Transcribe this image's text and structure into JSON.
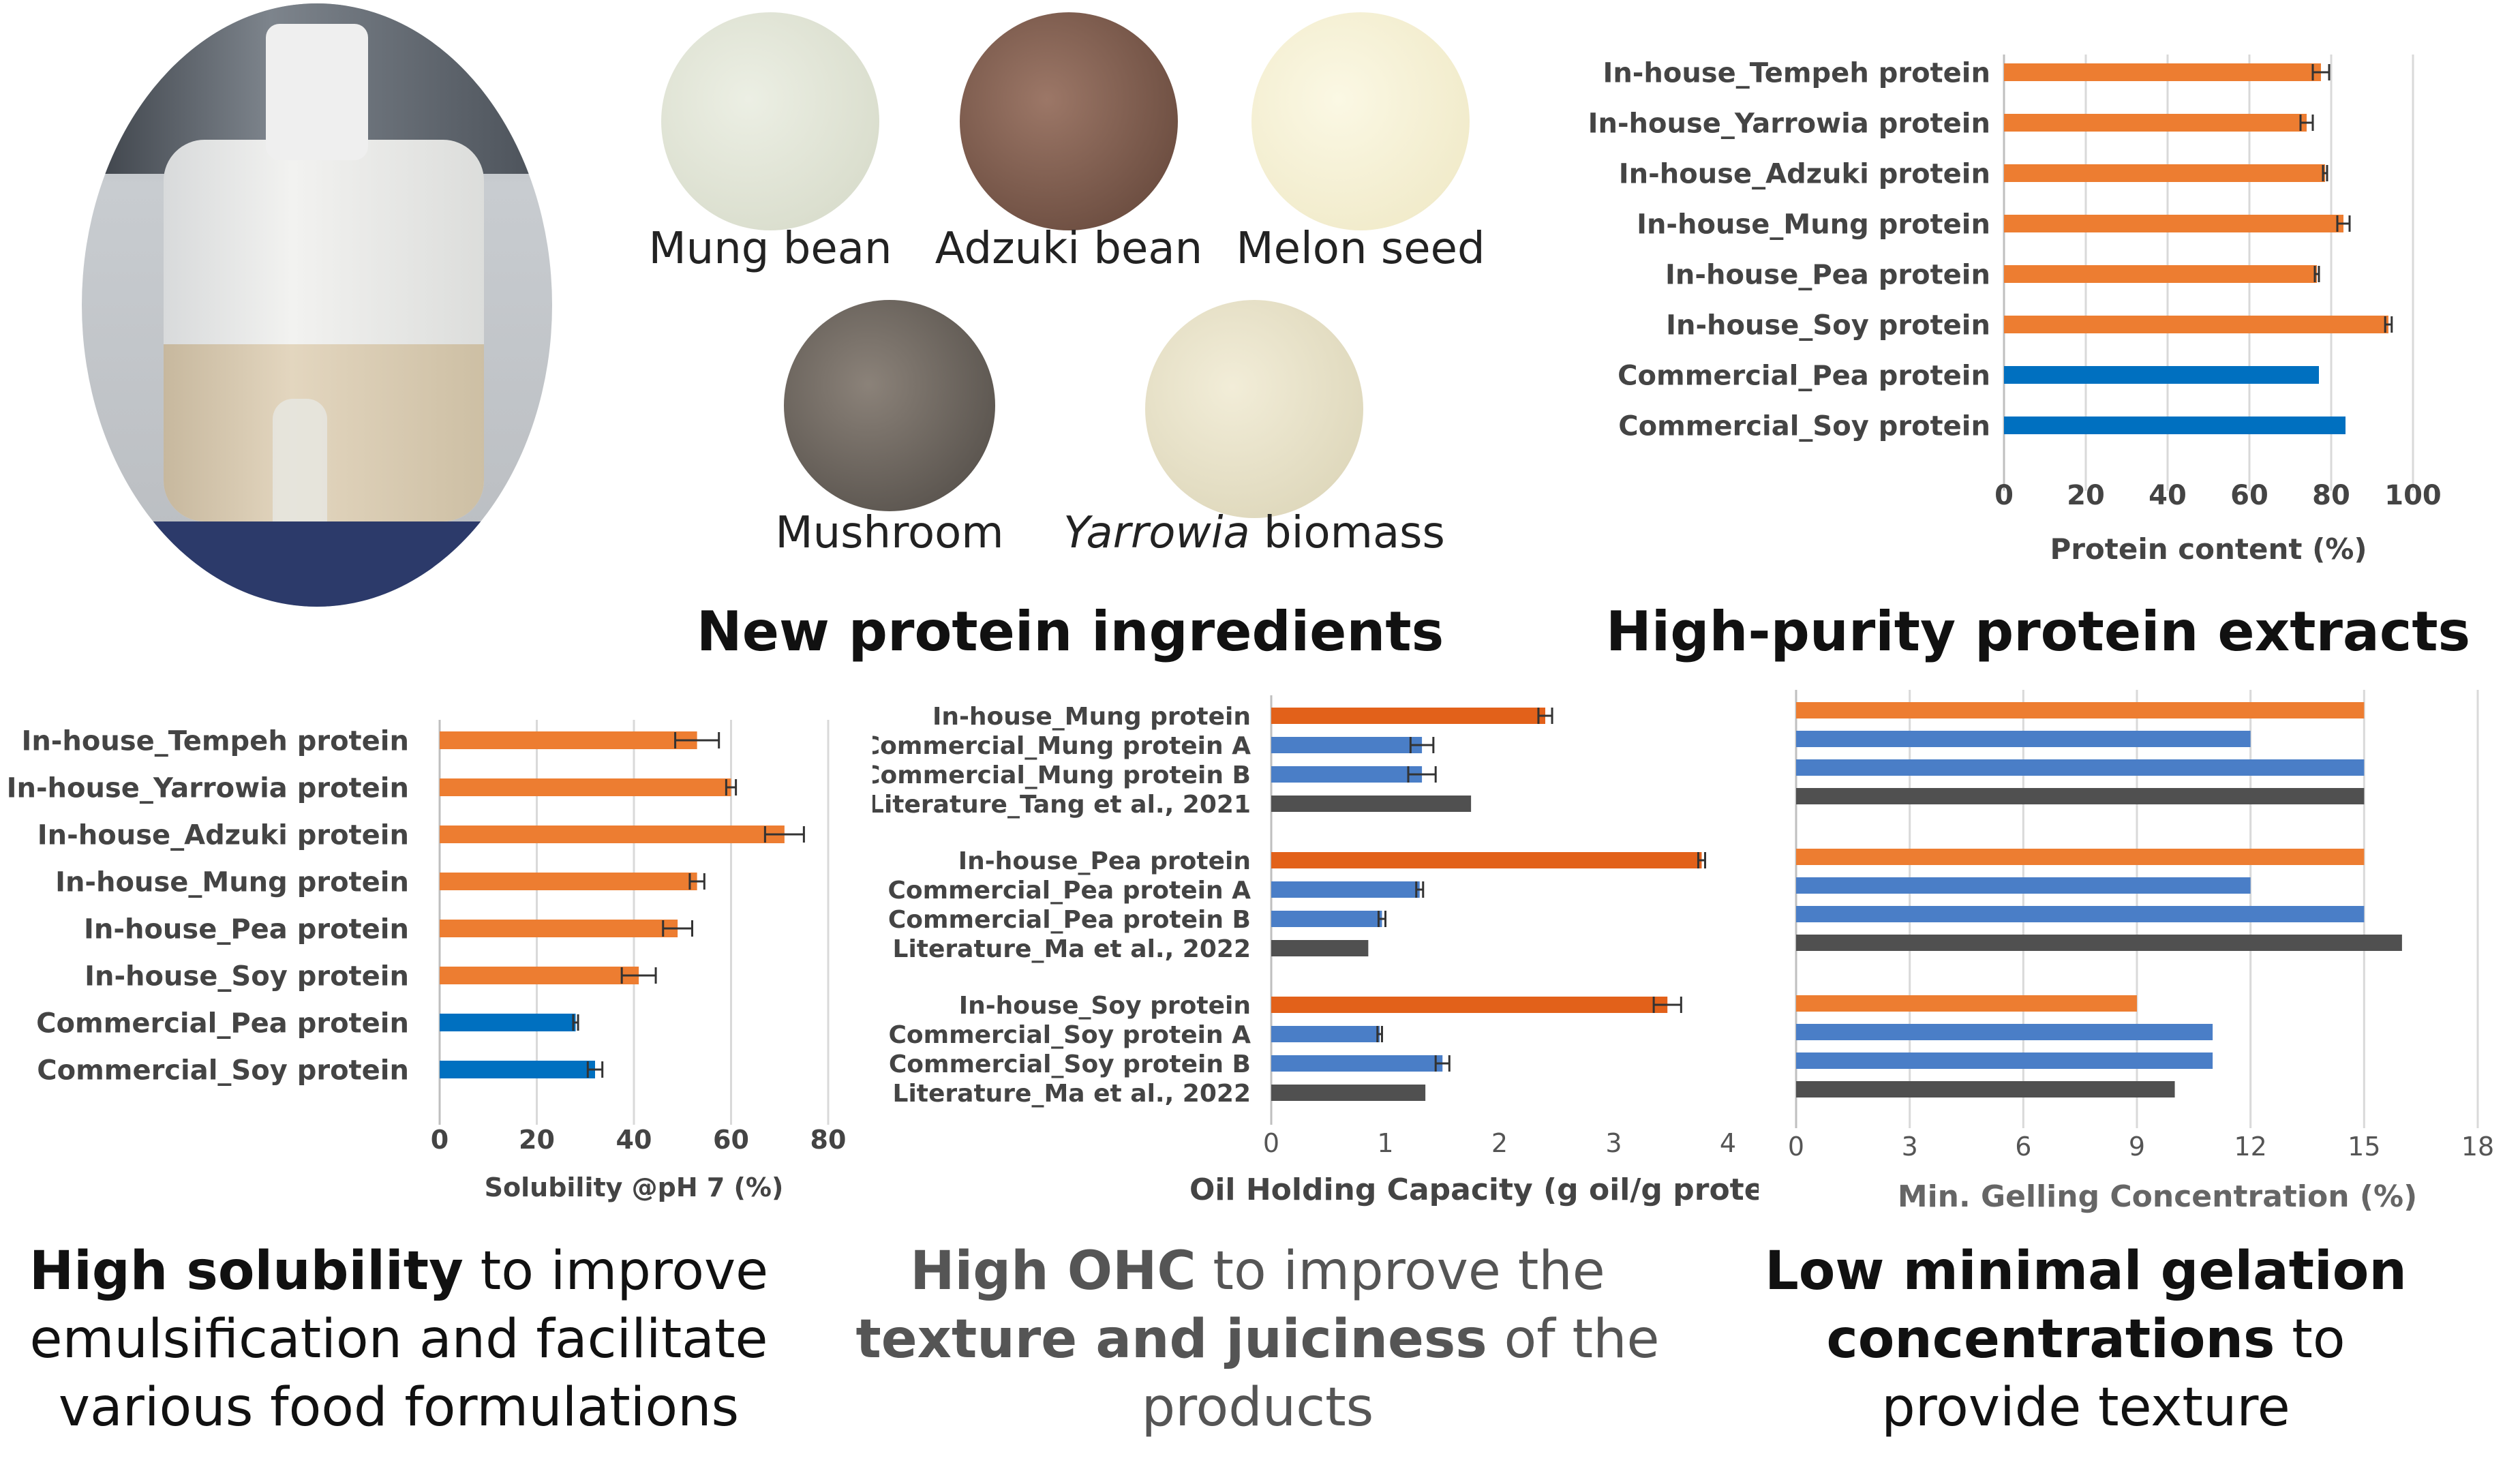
{
  "photos": {
    "mung": "Mung bean",
    "adzuki": "Adzuki bean",
    "melon": "Melon seed",
    "mushroom": "Mushroom",
    "yarrowia_italic": "Yarrowia",
    "yarrowia_rest": " biomass"
  },
  "titles": {
    "ingredients": "New protein ingredients",
    "purity": "High-purity protein extracts"
  },
  "captions": {
    "solubility": {
      "bold": "High solubility",
      "rest1": " to improve",
      "line2": "emulsification and facilitate",
      "line3": "various food formulations"
    },
    "ohc": {
      "bold1": "High OHC",
      "rest1": " to improve the",
      "bold2": "texture and juiciness",
      "rest2": " of the",
      "line3": "products"
    },
    "gel": {
      "bold1": "Low minimal gelation",
      "bold2": "concentrations",
      "rest2": " to",
      "line3": "provide texture"
    }
  },
  "colors": {
    "orange": "#ED7D31",
    "blue": "#0070C0",
    "dark_orange": "#E2611A",
    "mid_blue": "#4A7EC7",
    "gray": "#505050"
  },
  "chart_data": [
    {
      "id": "protein",
      "type": "bar",
      "orientation": "horizontal",
      "categories": [
        "In-house_Tempeh protein",
        "In-house_Yarrowia protein",
        "In-house_Adzuki protein",
        "In-house_Mung protein",
        "In-house_Pea protein",
        "In-house_Soy protein",
        "Commercial_Pea protein",
        "Commercial_Soy protein"
      ],
      "values": [
        77.5,
        74,
        78.5,
        83,
        76.5,
        94,
        77,
        83.5
      ],
      "errors": [
        2,
        1.5,
        0.5,
        1.5,
        0.5,
        0.8,
        0,
        0
      ],
      "bar_colors": [
        "orange",
        "orange",
        "orange",
        "orange",
        "orange",
        "orange",
        "blue",
        "blue"
      ],
      "xlabel": "Protein content (%)",
      "xlim": [
        0,
        100
      ],
      "xticks": [
        "0",
        "20",
        "40",
        "60",
        "80",
        "100"
      ]
    },
    {
      "id": "solubility",
      "type": "bar",
      "orientation": "horizontal",
      "categories": [
        "In-house_Tempeh protein",
        "In-house_Yarrowia protein",
        "In-house_Adzuki protein",
        "In-house_Mung protein",
        "In-house_Pea protein",
        "In-house_Soy protein",
        "Commercial_Pea protein",
        "Commercial_Soy protein"
      ],
      "values": [
        53,
        60,
        71,
        53,
        49,
        41,
        28,
        32
      ],
      "errors": [
        4.5,
        1,
        4,
        1.5,
        3,
        3.5,
        0.5,
        1.5
      ],
      "bar_colors": [
        "orange",
        "orange",
        "orange",
        "orange",
        "orange",
        "orange",
        "blue",
        "blue"
      ],
      "xlabel": "Solubility @pH 7 (%)",
      "xlim": [
        0,
        80
      ],
      "xticks": [
        "0",
        "20",
        "40",
        "60",
        "80"
      ]
    },
    {
      "id": "ohc",
      "type": "bar",
      "orientation": "horizontal",
      "categories": [
        "In-house_Mung protein",
        "Commercial_Mung protein A",
        "Commercial_Mung protein B",
        "Literature_Tang et al., 2021",
        "In-house_Pea protein",
        "Commercial_Pea protein A",
        "Commercial_Pea protein B",
        "Literature_Ma et al., 2022",
        "In-house_Soy protein",
        "Commercial_Soy protein A",
        "Commercial_Soy protein B",
        "Literature_Ma et al., 2022"
      ],
      "values": [
        2.4,
        1.32,
        1.32,
        1.75,
        3.77,
        1.3,
        0.97,
        0.85,
        3.47,
        0.95,
        1.5,
        1.35
      ],
      "errors": [
        0.06,
        0.1,
        0.12,
        0,
        0.03,
        0.03,
        0.03,
        0,
        0.12,
        0.02,
        0.06,
        0
      ],
      "bar_colors": [
        "dark_orange",
        "mid_blue",
        "mid_blue",
        "gray",
        "dark_orange",
        "mid_blue",
        "mid_blue",
        "gray",
        "dark_orange",
        "mid_blue",
        "mid_blue",
        "gray"
      ],
      "xlabel": "Oil Holding Capacity (g oil/g protein)",
      "xlim": [
        0,
        4
      ],
      "xticks": [
        "0",
        "1",
        "2",
        "3",
        "4"
      ]
    },
    {
      "id": "gel",
      "type": "bar",
      "orientation": "horizontal",
      "values": [
        15,
        12,
        15,
        15,
        15,
        12,
        15,
        16,
        9,
        11,
        11,
        10
      ],
      "bar_colors": [
        "orange",
        "mid_blue",
        "mid_blue",
        "gray",
        "orange",
        "mid_blue",
        "mid_blue",
        "gray",
        "orange",
        "mid_blue",
        "mid_blue",
        "gray"
      ],
      "xlabel": "Min. Gelling Concentration (%)",
      "xlim": [
        0,
        18
      ],
      "xticks": [
        "0",
        "3",
        "6",
        "9",
        "12",
        "15",
        "18"
      ]
    }
  ]
}
